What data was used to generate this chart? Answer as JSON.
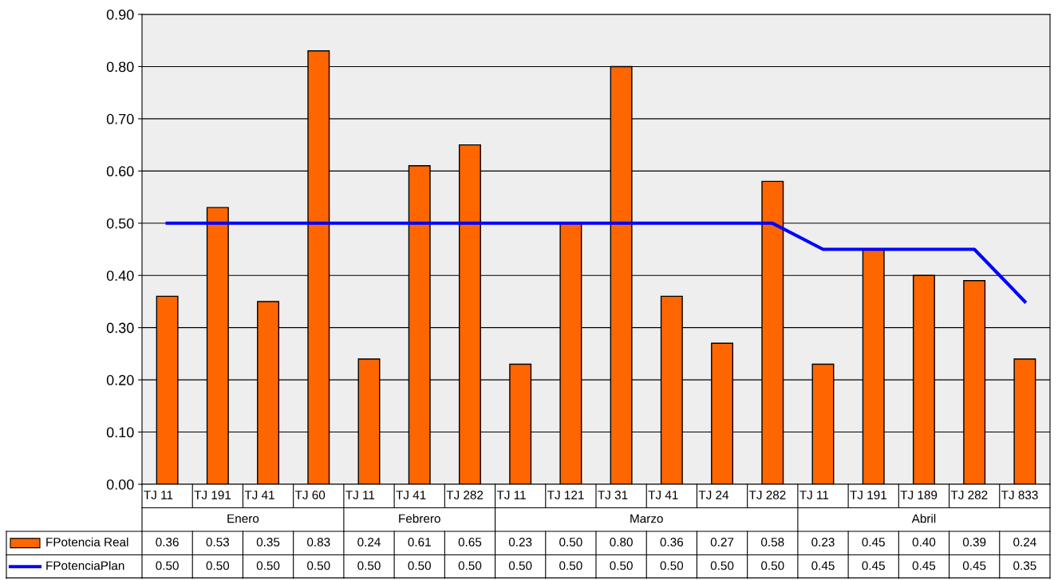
{
  "chart_data": {
    "type": "bar",
    "categories": [
      "TJ 11",
      "TJ 191",
      "TJ 41",
      "TJ 60",
      "TJ 11",
      "TJ 41",
      "TJ 282",
      "TJ 11",
      "TJ 121",
      "TJ 31",
      "TJ 41",
      "TJ 24",
      "TJ 282",
      "TJ 11",
      "TJ 191",
      "TJ 189",
      "TJ 282",
      "TJ 833"
    ],
    "series": [
      {
        "name": "FPotencia Real",
        "color": "#ff6600",
        "values": [
          0.36,
          0.53,
          0.35,
          0.83,
          0.24,
          0.61,
          0.65,
          0.23,
          0.5,
          0.8,
          0.36,
          0.27,
          0.58,
          0.23,
          0.45,
          0.4,
          0.39,
          0.24
        ],
        "value_labels": [
          "0.36",
          "0.53",
          "0.35",
          "0.83",
          "0.24",
          "0.61",
          "0.65",
          "0.23",
          "0.50",
          "0.80",
          "0.36",
          "0.27",
          "0.58",
          "0.23",
          "0.45",
          "0.40",
          "0.39",
          "0.24"
        ]
      },
      {
        "name": "FPotenciaPlan",
        "type": "line",
        "color": "#0000ff",
        "values": [
          0.5,
          0.5,
          0.5,
          0.5,
          0.5,
          0.5,
          0.5,
          0.5,
          0.5,
          0.5,
          0.5,
          0.5,
          0.5,
          0.45,
          0.45,
          0.45,
          0.45,
          0.35
        ],
        "value_labels": [
          "0.50",
          "0.50",
          "0.50",
          "0.50",
          "0.50",
          "0.50",
          "0.50",
          "0.50",
          "0.50",
          "0.50",
          "0.50",
          "0.50",
          "0.50",
          "0.45",
          "0.45",
          "0.45",
          "0.45",
          "0.35"
        ]
      }
    ],
    "annotations": [
      "Enero",
      "Febrero",
      "Marzo",
      "Abril"
    ],
    "ylim": [
      0,
      0.9
    ],
    "yticks": [
      {
        "value": 0,
        "label": "0.00"
      },
      {
        "value": 0.1,
        "label": "0.10"
      },
      {
        "value": 0.2,
        "label": "0.20"
      },
      {
        "value": 0.3,
        "label": "0.30"
      },
      {
        "value": 0.4,
        "label": "0.40"
      },
      {
        "value": 0.5,
        "label": "0.50"
      },
      {
        "value": 0.6,
        "label": "0.60"
      },
      {
        "value": 0.7,
        "label": "0.70"
      },
      {
        "value": 0.8,
        "label": "0.80"
      },
      {
        "value": 0.9,
        "label": "0.90"
      }
    ],
    "grid": "y",
    "legend": "bottom"
  }
}
